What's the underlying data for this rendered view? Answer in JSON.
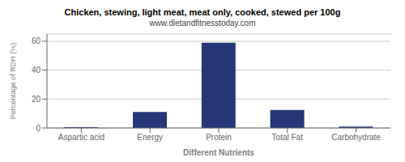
{
  "chart_data": {
    "type": "bar",
    "title": "Chicken, stewing, light meat, meat only, cooked, stewed per 100g",
    "subtitle": "www.dietandfitnesstoday.com",
    "xlabel": "Different Nutrients",
    "ylabel": "Percentage of RDH (%)",
    "categories": [
      "Aspartic acid",
      "Energy",
      "Protein",
      "Total Fat",
      "Carbohydrate"
    ],
    "values": [
      0.5,
      11,
      59,
      12.5,
      1.0
    ],
    "color": "#253776",
    "ylim": [
      0,
      65
    ],
    "yticks": [
      0,
      20,
      40,
      60
    ],
    "grid": true
  }
}
